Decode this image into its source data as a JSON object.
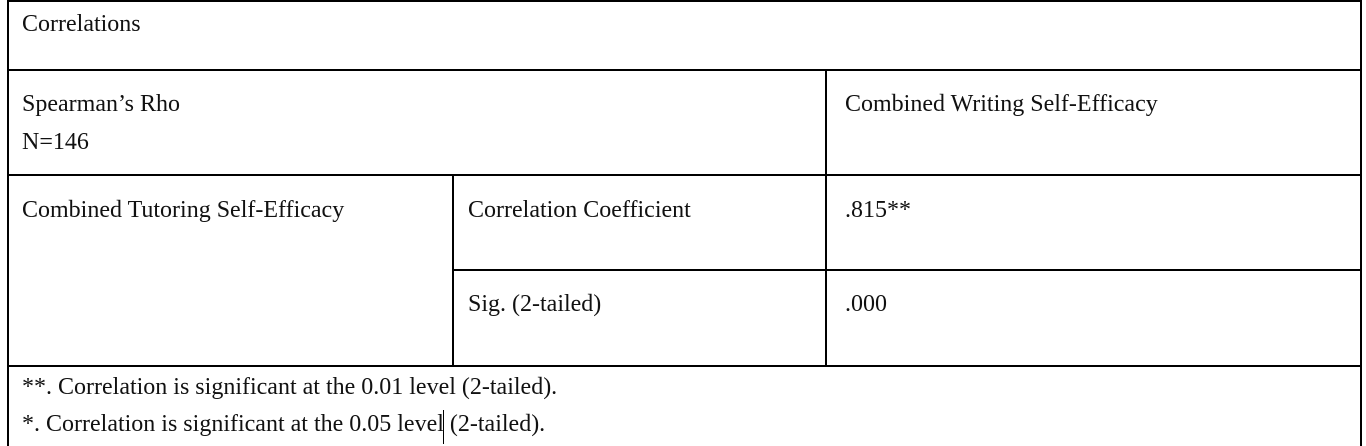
{
  "table": {
    "title": "Correlations",
    "header": {
      "method": "Spearman’s Rho",
      "n": "N=146",
      "column": "Combined Writing Self-Efficacy"
    },
    "row_variable": "Combined Tutoring Self-Efficacy",
    "rows": [
      [
        "Correlation Coefficient",
        ".815**"
      ],
      [
        "Sig. (2-tailed)",
        ".000"
      ]
    ],
    "footnotes": [
      "**. Correlation is significant at the 0.01 level (2-tailed).",
      "*. Correlation is significant at the 0.05 level (2-tailed)."
    ]
  }
}
